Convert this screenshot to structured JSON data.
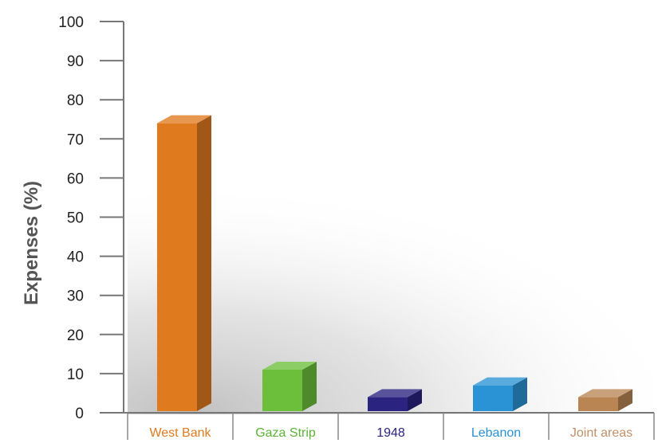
{
  "chart_data": {
    "type": "bar",
    "title": "",
    "xlabel": "",
    "ylabel": "Expenses (%)",
    "ylim": [
      0,
      100
    ],
    "yticks": [
      0,
      10,
      20,
      30,
      40,
      50,
      60,
      70,
      80,
      90,
      100
    ],
    "ytick_labels": [
      "0",
      "10",
      "20",
      "30",
      "40",
      "50",
      "60",
      "70",
      "80",
      "90",
      "100"
    ],
    "categories": [
      "West Bank",
      "Gaza Strip",
      "1948",
      "Lebanon",
      "Joint areas"
    ],
    "values": [
      74,
      11,
      4,
      7,
      4
    ],
    "colors": [
      "#e07a1f",
      "#6cbf3a",
      "#2a2380",
      "#2a93d5",
      "#b98553"
    ],
    "label_colors": [
      "#e07a1f",
      "#5db33a",
      "#2a2380",
      "#2a93d5",
      "#c0906a"
    ],
    "style": "3d-bars",
    "grid": false,
    "legend": "none"
  }
}
